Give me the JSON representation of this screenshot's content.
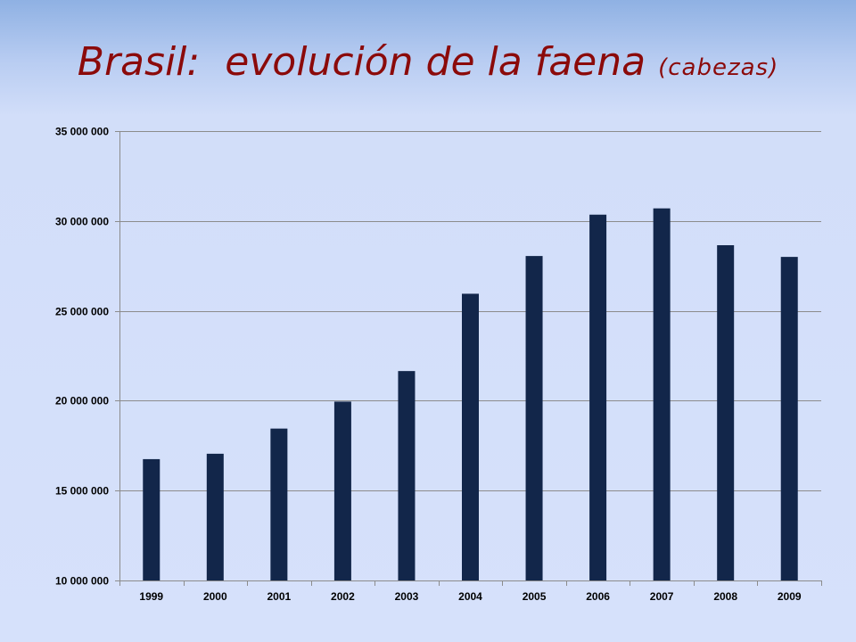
{
  "slide": {
    "title": "Brasil:  evolución de la faena",
    "subtitle": "(cabezas)"
  },
  "colors": {
    "title": "#8b0a0a",
    "bar": "#12264a",
    "grid": "#8c8c8c"
  },
  "chart_data": {
    "type": "bar",
    "title": "",
    "xlabel": "",
    "ylabel": "",
    "categories": [
      "1999",
      "2000",
      "2001",
      "2002",
      "2003",
      "2004",
      "2005",
      "2006",
      "2007",
      "2008",
      "2009"
    ],
    "values": [
      16750000,
      17050000,
      18450000,
      19950000,
      21650000,
      25950000,
      28050000,
      30350000,
      30700000,
      28650000,
      28000000
    ],
    "ylim": [
      10000000,
      35000000
    ],
    "yticks": [
      10000000,
      15000000,
      20000000,
      25000000,
      30000000,
      35000000
    ],
    "ytick_labels": [
      "10 000 000",
      "15 000 000",
      "20 000 000",
      "25 000 000",
      "30 000 000",
      "35 000 000"
    ],
    "grid": true,
    "legend": "none"
  }
}
